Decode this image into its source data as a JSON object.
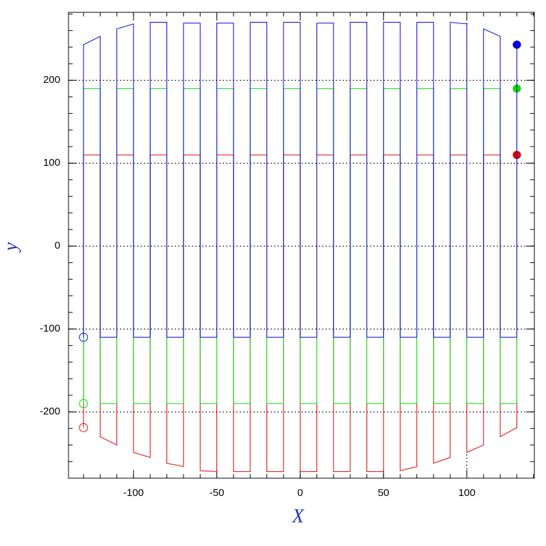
{
  "chart_data": {
    "type": "line",
    "x_label": "X",
    "y_label": "y",
    "xlim": [
      -139,
      140.5
    ],
    "ylim": [
      -280,
      282
    ],
    "xticks": [
      -100,
      -50,
      0,
      50,
      100
    ],
    "yticks": [
      -200,
      -100,
      0,
      100,
      200
    ],
    "minor_x_step": 10,
    "minor_y_step": 20,
    "grid": true,
    "vlines": [
      -50,
      100
    ],
    "x": [
      -130,
      -130,
      -120,
      -120,
      -110,
      -110,
      -100,
      -100,
      -90,
      -90,
      -80,
      -80,
      -70,
      -70,
      -60,
      -60,
      -50,
      -50,
      -40,
      -40,
      -30,
      -30,
      -20,
      -20,
      -10,
      -10,
      0,
      0,
      10,
      10,
      20,
      20,
      30,
      30,
      40,
      40,
      50,
      50,
      60,
      60,
      70,
      70,
      80,
      80,
      90,
      90,
      100,
      100,
      110,
      110,
      120,
      120,
      130,
      130
    ],
    "series": [
      {
        "name": "red",
        "color": "#e00000",
        "values": [
          -219,
          110,
          110,
          -230,
          -240,
          110,
          110,
          -249,
          -255,
          110,
          110,
          -262,
          -266,
          110,
          110,
          -271,
          -272,
          110,
          110,
          -272,
          -272,
          110,
          110,
          -272,
          -272,
          110,
          110,
          -272,
          -272,
          110,
          110,
          -272,
          -272,
          110,
          110,
          -272,
          -272,
          110,
          110,
          -271,
          -266,
          110,
          110,
          -262,
          -255,
          110,
          110,
          -249,
          -240,
          110,
          110,
          -230,
          -219,
          110
        ]
      },
      {
        "name": "green",
        "color": "#00dd00",
        "values": [
          -190,
          190,
          190,
          -190,
          -190,
          190,
          190,
          -190,
          -190,
          190,
          190,
          -190,
          -190,
          190,
          190,
          -190,
          -190,
          190,
          190,
          -190,
          -190,
          190,
          190,
          -190,
          -190,
          190,
          190,
          -190,
          -190,
          190,
          190,
          -190,
          -190,
          190,
          190,
          -190,
          -190,
          190,
          190,
          -190,
          -190,
          190,
          190,
          -190,
          -190,
          190,
          190,
          -190,
          -190,
          190,
          190,
          -190,
          -190,
          190
        ]
      },
      {
        "name": "blue",
        "color": "#0000e0",
        "values": [
          -110,
          243,
          253,
          -110,
          -110,
          262,
          268,
          -110,
          -110,
          270,
          270,
          -110,
          -110,
          269,
          269,
          -110,
          -110,
          269,
          269,
          -110,
          -110,
          270,
          270,
          -110,
          -110,
          270,
          270,
          -110,
          -110,
          269,
          269,
          -110,
          -110,
          270,
          270,
          -110,
          -110,
          270,
          270,
          -110,
          -110,
          270,
          270,
          -110,
          -110,
          270,
          268,
          -110,
          -110,
          262,
          253,
          -110,
          -110,
          243
        ]
      }
    ]
  }
}
